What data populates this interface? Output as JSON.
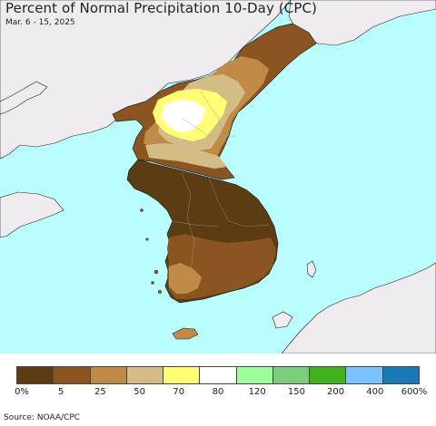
{
  "map": {
    "title": "Percent of Normal Precipitation 10-Day (CPC)",
    "date_range": "Mar. 6 - 15, 2025",
    "source": "Source: NOAA/CPC",
    "ocean_color": "#b9fdfe",
    "land_color": "#f0ebee"
  },
  "legend": {
    "bins": [
      {
        "color": "#5b3c13"
      },
      {
        "color": "#8b5522"
      },
      {
        "color": "#c08b46"
      },
      {
        "color": "#d2bd86"
      },
      {
        "color": "#ffff75"
      },
      {
        "color": "#ffffff"
      },
      {
        "color": "#9cff9c"
      },
      {
        "color": "#7ccd7c"
      },
      {
        "color": "#40b31c"
      },
      {
        "color": "#7bc3ff"
      },
      {
        "color": "#1a78b5"
      }
    ],
    "labels": [
      "0%",
      "5",
      "25",
      "50",
      "70",
      "80",
      "120",
      "150",
      "200",
      "400",
      "600%"
    ]
  }
}
